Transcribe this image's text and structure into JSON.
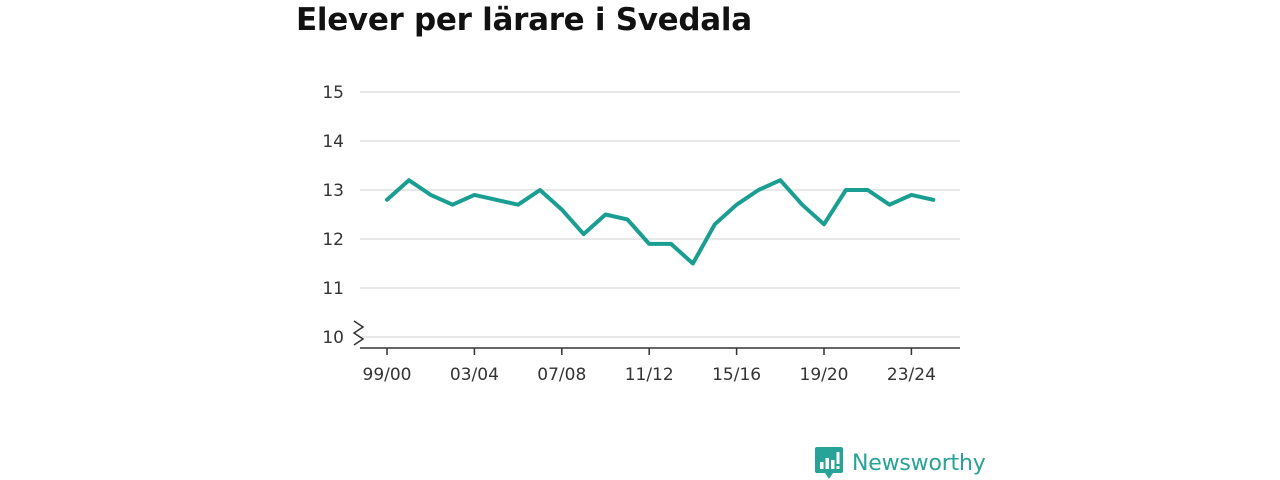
{
  "chart_data": {
    "type": "line",
    "title": "Elever per lärare i Svedala",
    "xlabel": "",
    "ylabel": "",
    "x": [
      "99/00",
      "00/01",
      "01/02",
      "02/03",
      "03/04",
      "04/05",
      "05/06",
      "06/07",
      "07/08",
      "08/09",
      "09/10",
      "10/11",
      "11/12",
      "12/13",
      "13/14",
      "14/15",
      "15/16",
      "16/17",
      "17/18",
      "18/19",
      "19/20",
      "20/21",
      "21/22",
      "22/23",
      "23/24",
      "24/25"
    ],
    "x_tick_labels": [
      "99/00",
      "03/04",
      "07/08",
      "11/12",
      "15/16",
      "19/20",
      "23/24"
    ],
    "series": [
      {
        "color": "#1a9e91",
        "values": [
          12.8,
          13.2,
          12.9,
          12.7,
          12.9,
          12.8,
          12.7,
          13.0,
          12.6,
          12.1,
          12.5,
          12.4,
          11.9,
          11.9,
          11.5,
          12.3,
          12.7,
          13.0,
          13.2,
          12.7,
          12.3,
          13.0,
          13.0,
          12.7,
          12.9,
          12.8
        ]
      }
    ],
    "ylim": [
      10,
      15
    ],
    "y_ticks": [
      10,
      11,
      12,
      13,
      14,
      15
    ],
    "y_axis_break": true,
    "grid": true,
    "legend": "none"
  },
  "brand": {
    "name": "Newsworthy",
    "color": "#27a397",
    "icon": "bar-chart-speech-bubble-icon"
  }
}
